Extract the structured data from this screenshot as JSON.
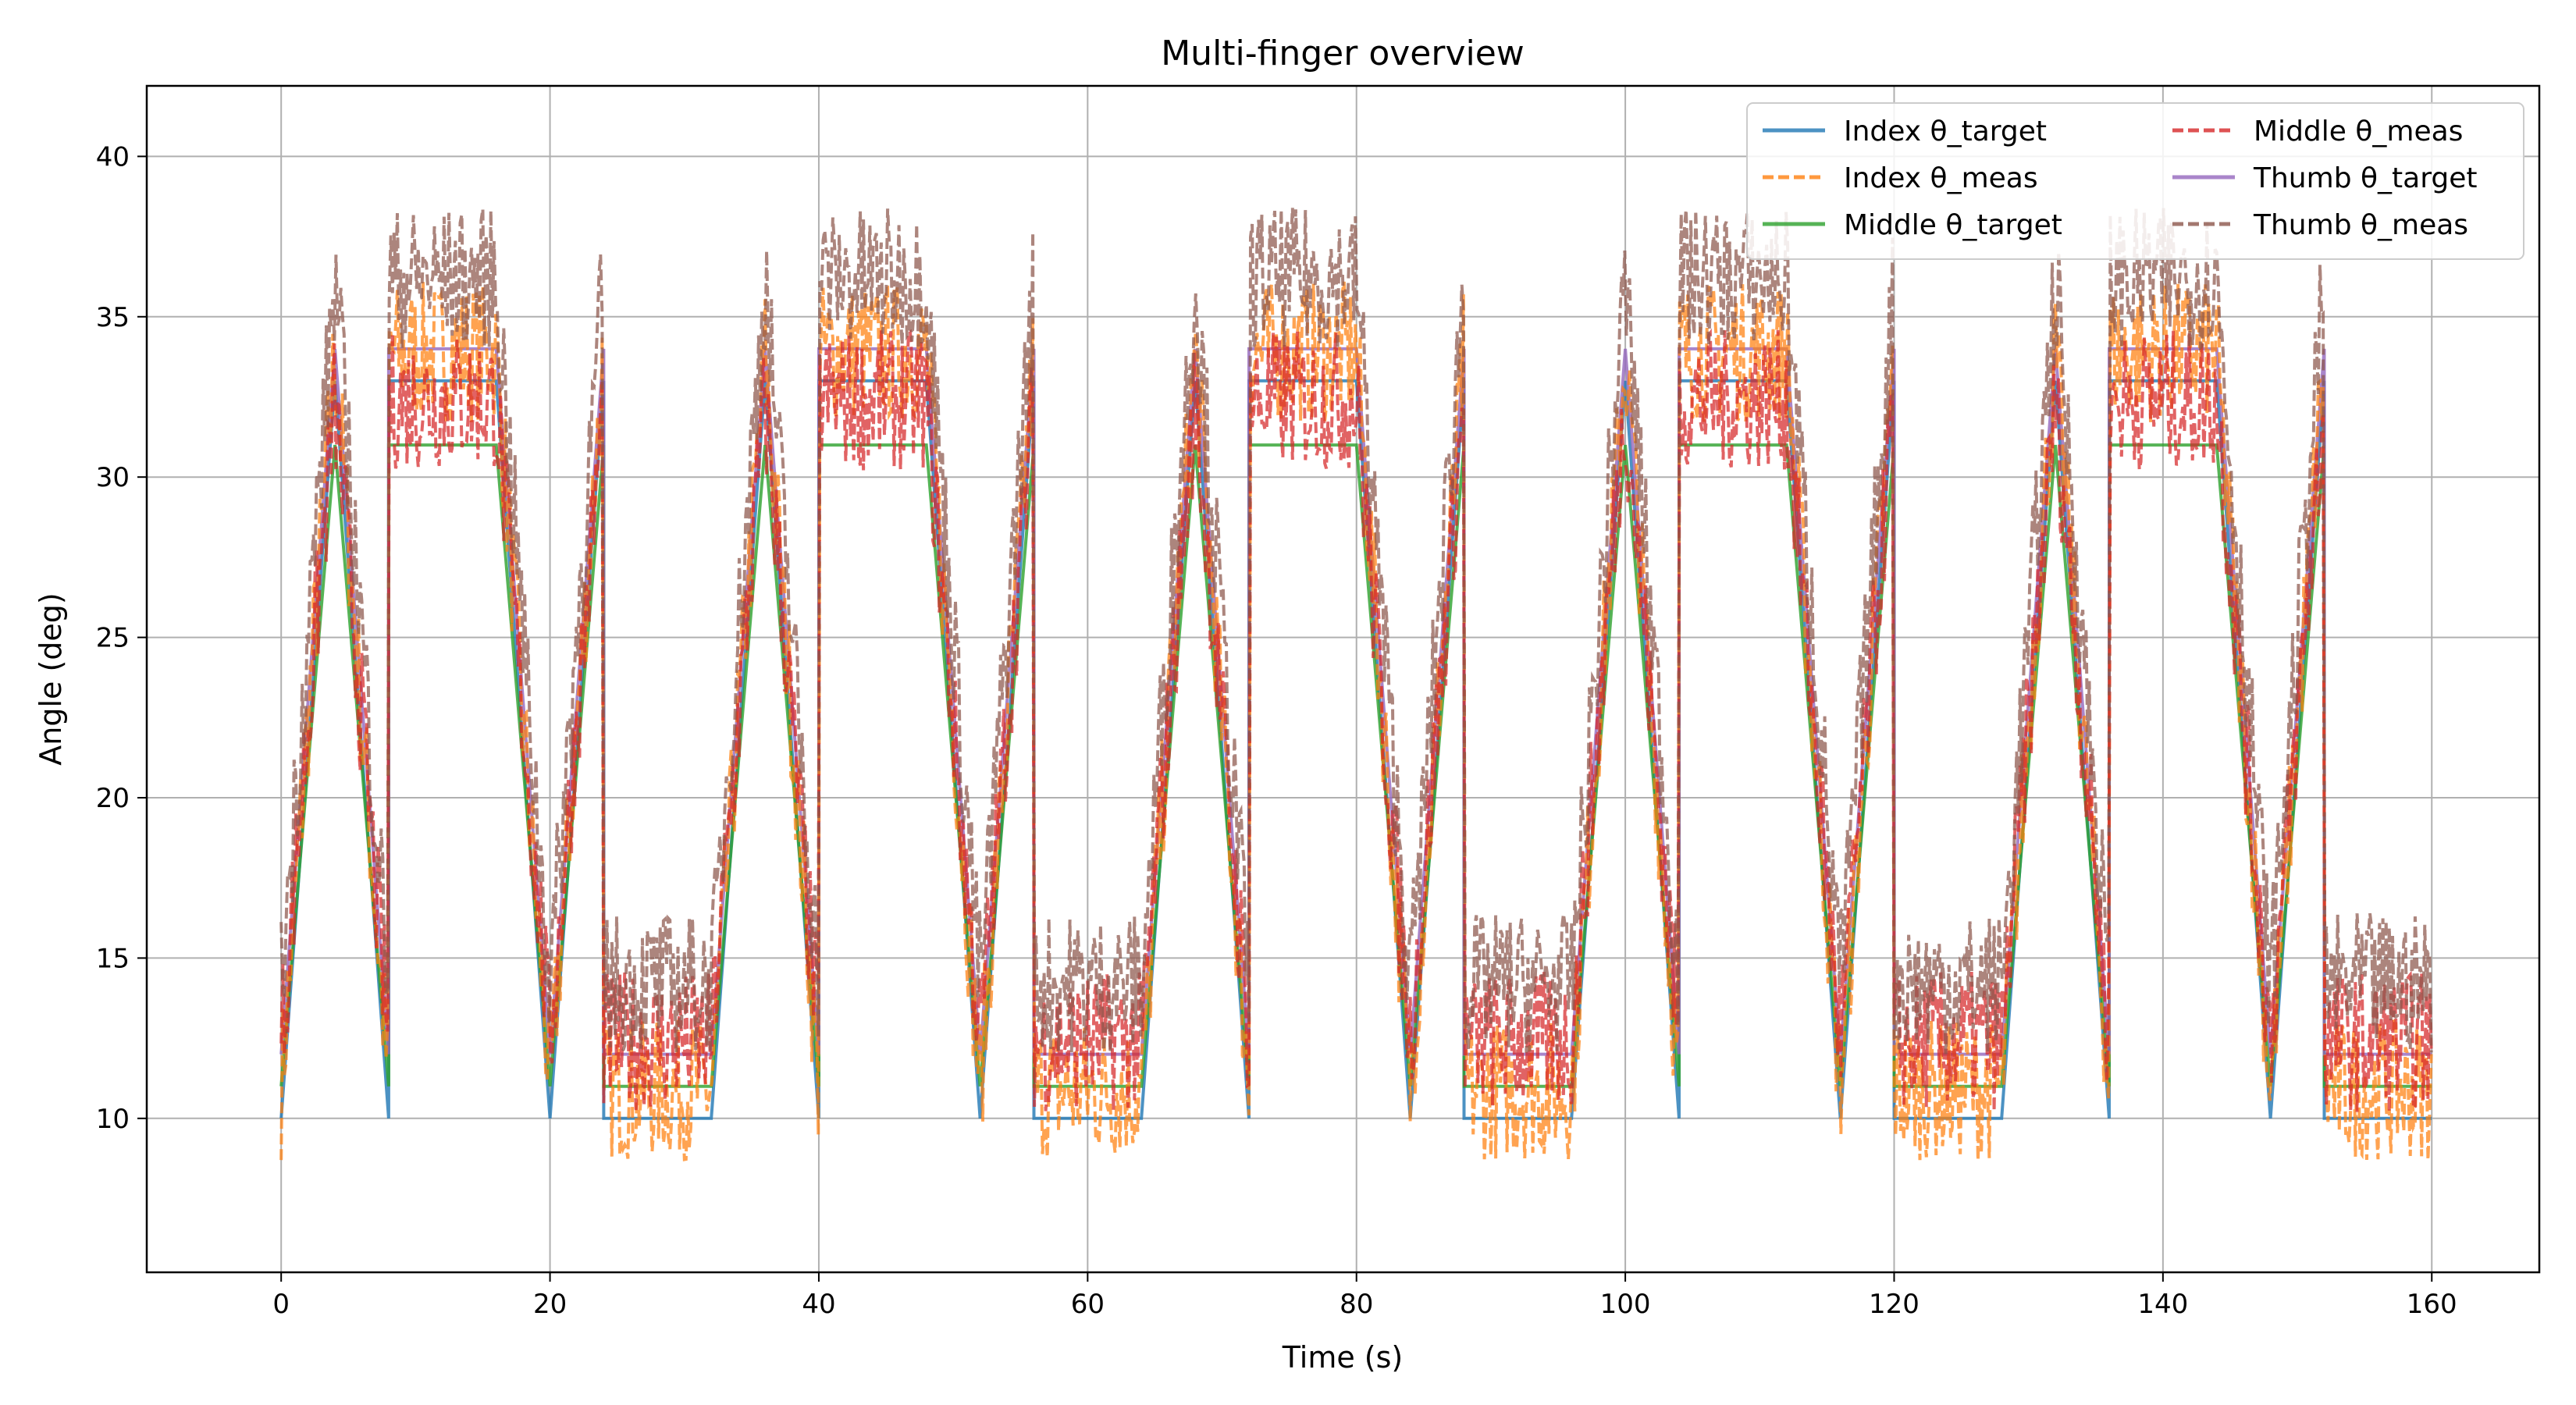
{
  "chart_data": {
    "type": "line",
    "title": "Multi-finger overview",
    "xlabel": "Time (s)",
    "ylabel": "Angle (deg)",
    "xlim": [
      -10,
      168
    ],
    "ylim": [
      5.2,
      42.2
    ],
    "xticks": [
      0,
      20,
      40,
      60,
      80,
      100,
      120,
      140,
      160
    ],
    "yticks": [
      10,
      15,
      20,
      25,
      30,
      35,
      40
    ],
    "grid": true,
    "legend": {
      "placement": "top-right",
      "columns": 2
    },
    "targets": {
      "Index": {
        "peaks": [
          33,
          33,
          33,
          33,
          33,
          33,
          33,
          33,
          33,
          33
        ],
        "troughs": [
          10,
          10,
          10,
          10,
          10,
          10,
          10,
          10,
          10,
          10
        ]
      },
      "Middle": {
        "peaks": [
          31,
          31,
          31,
          31,
          31,
          31,
          31,
          31,
          31,
          31
        ],
        "troughs": [
          11,
          11,
          11,
          11,
          11,
          11,
          11,
          11,
          11,
          11
        ]
      },
      "Thumb": {
        "peaks": [
          34,
          34,
          34,
          34,
          34,
          34,
          34,
          34,
          34,
          34
        ],
        "troughs": [
          12,
          12,
          12,
          12,
          12,
          12,
          12,
          12,
          12,
          12
        ]
      }
    },
    "cycles": [
      {
        "start": 0,
        "shape": "triangle"
      },
      {
        "start": 8,
        "shape": "high-plateau"
      },
      {
        "start": 16,
        "shape": "triangle-down"
      },
      {
        "start": 24,
        "shape": "low-plateau"
      },
      {
        "start": 32,
        "shape": "triangle"
      },
      {
        "start": 40,
        "shape": "high-plateau"
      },
      {
        "start": 48,
        "shape": "triangle-down"
      },
      {
        "start": 56,
        "shape": "low-plateau"
      },
      {
        "start": 64,
        "shape": "triangle"
      },
      {
        "start": 72,
        "shape": "high-plateau"
      },
      {
        "start": 80,
        "shape": "triangle-down"
      },
      {
        "start": 88,
        "shape": "low-plateau"
      },
      {
        "start": 96,
        "shape": "triangle"
      },
      {
        "start": 104,
        "shape": "high-plateau"
      },
      {
        "start": 112,
        "shape": "triangle-down"
      },
      {
        "start": 120,
        "shape": "low-plateau"
      },
      {
        "start": 128,
        "shape": "triangle"
      },
      {
        "start": 136,
        "shape": "high-plateau"
      },
      {
        "start": 144,
        "shape": "triangle-down"
      },
      {
        "start": 152,
        "shape": "low-plateau"
      }
    ],
    "x_end": 160,
    "meas_noise_deg": 2.2,
    "series": [
      {
        "name": "Index θ_target",
        "finger": "Index",
        "kind": "target",
        "color": "#1f77b4",
        "dash": "solid"
      },
      {
        "name": "Index θ_meas",
        "finger": "Index",
        "kind": "meas",
        "color": "#ff7f0e",
        "dash": "dashed"
      },
      {
        "name": "Middle θ_target",
        "finger": "Middle",
        "kind": "target",
        "color": "#2ca02c",
        "dash": "solid"
      },
      {
        "name": "Middle θ_meas",
        "finger": "Middle",
        "kind": "meas",
        "color": "#d62728",
        "dash": "dashed"
      },
      {
        "name": "Thumb θ_target",
        "finger": "Thumb",
        "kind": "target",
        "color": "#9467bd",
        "dash": "solid"
      },
      {
        "name": "Thumb θ_meas",
        "finger": "Thumb",
        "kind": "meas",
        "color": "#8c564b",
        "dash": "dashed"
      }
    ]
  }
}
